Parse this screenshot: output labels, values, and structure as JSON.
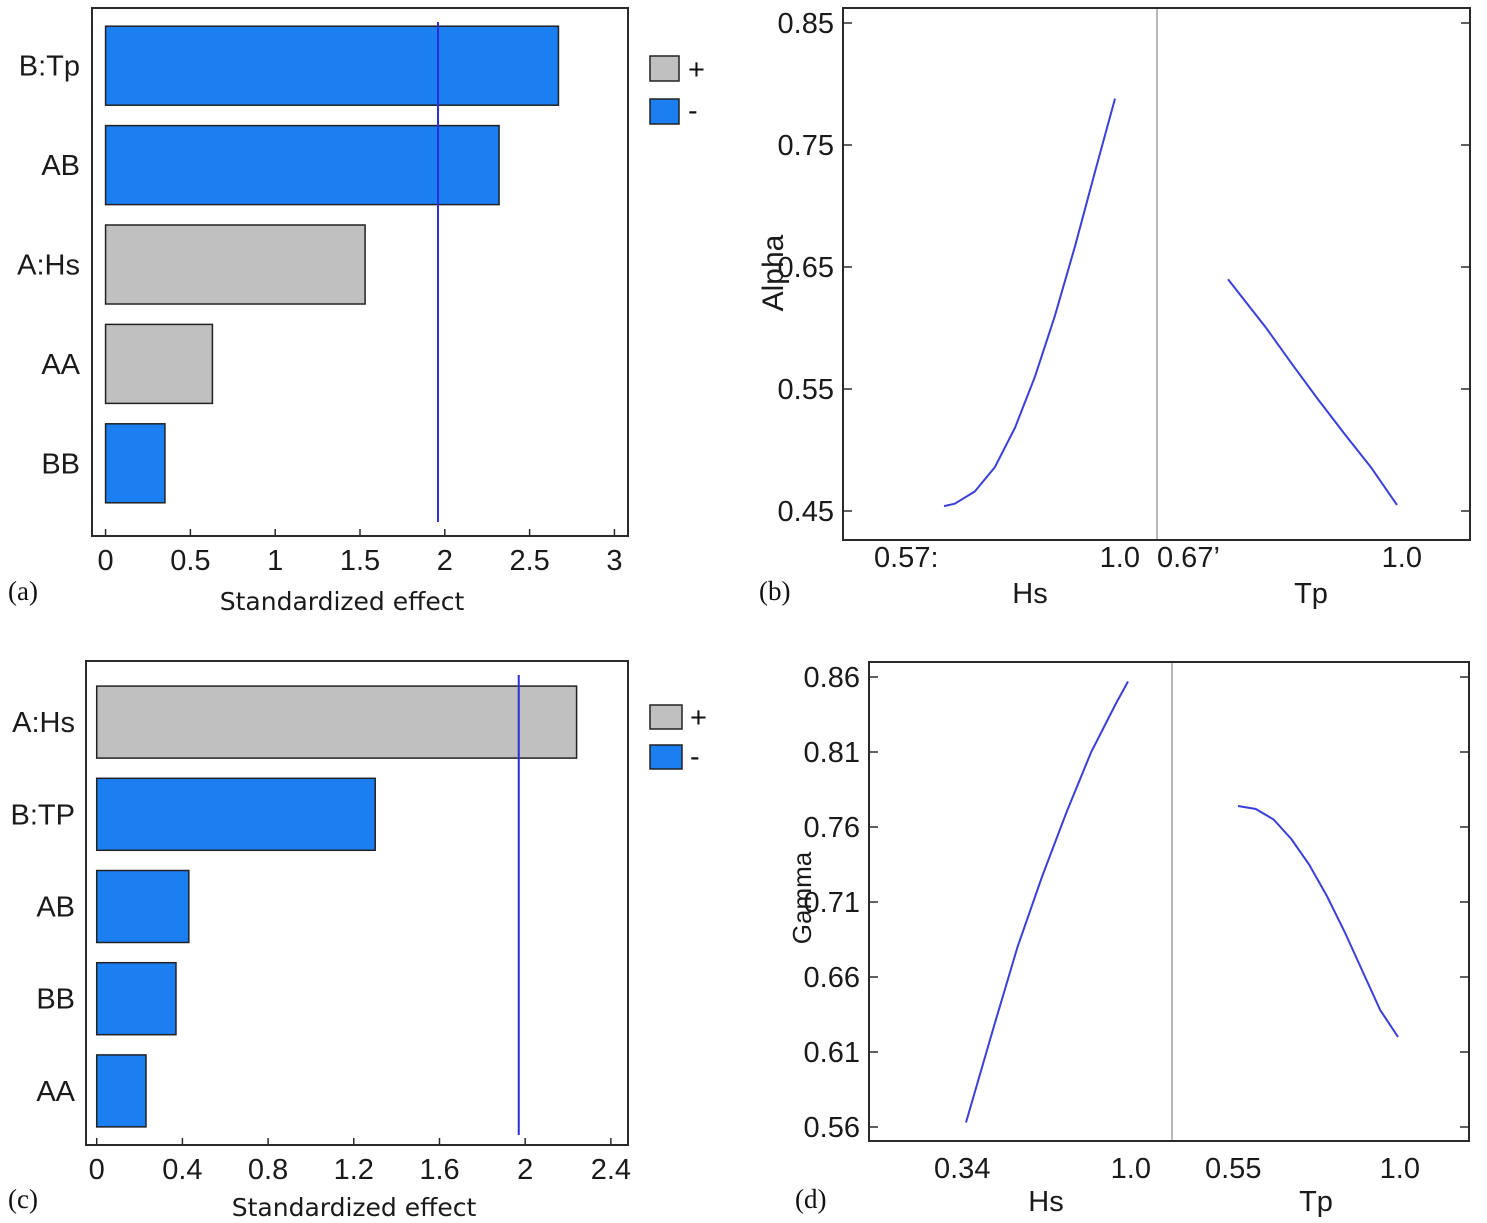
{
  "colors": {
    "positive": "#c0c0c0",
    "negative": "#1b7ef1",
    "ref_line": "#2a2fd6",
    "curve": "#3a3fd8",
    "frame": "#2a2a2a",
    "divider": "#b8b8b8"
  },
  "legend": {
    "plus": "+",
    "minus": "-"
  },
  "chart_data": [
    {
      "panel": "(a)",
      "type": "bar",
      "orientation": "horizontal",
      "xlabel": "Standardized effect",
      "categories": [
        "B:Tp",
        "AB",
        "A:Hs",
        "AA",
        "BB"
      ],
      "values": [
        2.67,
        2.32,
        1.53,
        0.63,
        0.35
      ],
      "signs": [
        "-",
        "-",
        "+",
        "+",
        "-"
      ],
      "reference_line": 1.96,
      "xlim": [
        -0.08,
        3.08
      ],
      "xticks": [
        "0",
        "0.5",
        "1",
        "1.5",
        "2",
        "2.5",
        "3"
      ],
      "legend": [
        "+",
        "-"
      ]
    },
    {
      "panel": "(b)",
      "type": "line",
      "ylabel": "Alpha",
      "ylim": [
        0.45,
        0.85
      ],
      "yticks": [
        "0.45",
        "0.55",
        "0.65",
        "0.75",
        "0.85"
      ],
      "factors": [
        {
          "name": "Hs",
          "low_label": "0.57:",
          "high_label": "1.0",
          "x": [
            0.573,
            0.6,
            0.65,
            0.7,
            0.75,
            0.8,
            0.85,
            0.9,
            0.95,
            1.0
          ],
          "y": [
            0.454,
            0.456,
            0.466,
            0.486,
            0.518,
            0.56,
            0.61,
            0.667,
            0.728,
            0.788
          ]
        },
        {
          "name": "Tp",
          "low_label": "0.67’",
          "high_label": "1.0",
          "x": [
            0.677,
            0.75,
            0.8,
            0.85,
            0.9,
            0.95,
            1.0
          ],
          "y": [
            0.64,
            0.6,
            0.57,
            0.541,
            0.513,
            0.486,
            0.455
          ]
        }
      ]
    },
    {
      "panel": "(c)",
      "type": "bar",
      "orientation": "horizontal",
      "xlabel": "Standardized effect",
      "categories": [
        "A:Hs",
        "B:TP",
        "AB",
        "BB",
        "AA"
      ],
      "values": [
        2.24,
        1.3,
        0.43,
        0.37,
        0.23
      ],
      "signs": [
        "+",
        "-",
        "-",
        "-",
        "-"
      ],
      "reference_line": 1.97,
      "xlim": [
        -0.05,
        2.48
      ],
      "xticks": [
        "0",
        "0.4",
        "0.8",
        "1.2",
        "1.6",
        "2",
        "2.4"
      ],
      "legend": [
        "+",
        "-"
      ]
    },
    {
      "panel": "(d)",
      "type": "line",
      "ylabel": "Gamma",
      "ylim": [
        0.56,
        0.86
      ],
      "yticks": [
        "0.56",
        "0.61",
        "0.66",
        "0.71",
        "0.76",
        "0.81",
        "0.86"
      ],
      "factors": [
        {
          "name": "Hs",
          "low_label": "0.34",
          "high_label": "1.0",
          "x": [
            0.34,
            0.45,
            0.55,
            0.65,
            0.75,
            0.85,
            0.95,
            1.0
          ],
          "y": [
            0.563,
            0.625,
            0.68,
            0.727,
            0.77,
            0.81,
            0.842,
            0.857
          ]
        },
        {
          "name": "Tp",
          "low_label": "0.55",
          "high_label": "1.0",
          "x": [
            0.55,
            0.6,
            0.65,
            0.7,
            0.75,
            0.8,
            0.85,
            0.9,
            0.95,
            1.0
          ],
          "y": [
            0.774,
            0.772,
            0.765,
            0.752,
            0.735,
            0.714,
            0.69,
            0.664,
            0.638,
            0.62
          ]
        }
      ]
    }
  ]
}
